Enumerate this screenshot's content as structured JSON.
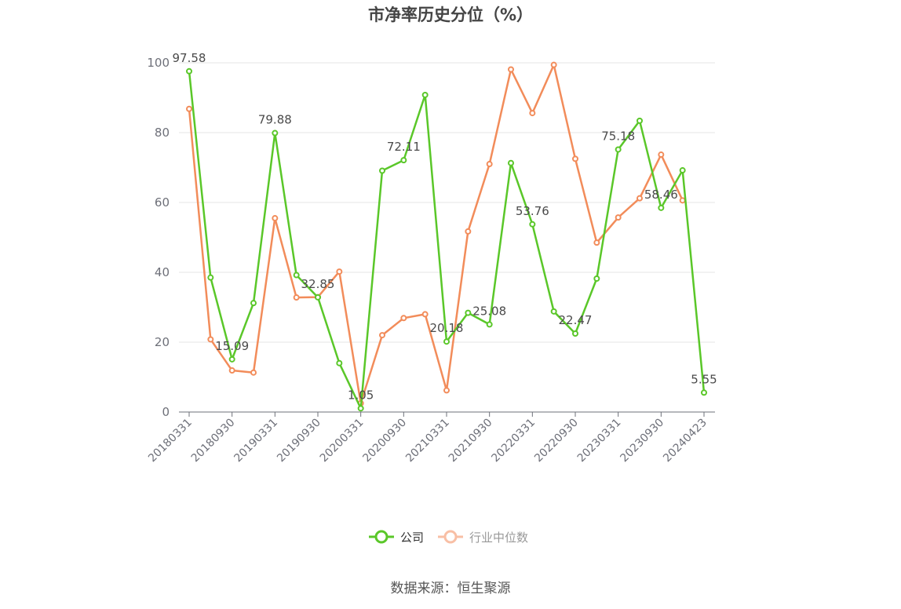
{
  "chart_data": {
    "type": "line",
    "title": "市净率历史分位（%）",
    "source": "数据来源：恒生聚源",
    "ylim": [
      0,
      100
    ],
    "yticks": [
      0,
      20,
      40,
      60,
      80,
      100
    ],
    "xtick_labels": [
      "20180331",
      "20180930",
      "20190331",
      "20190930",
      "20200331",
      "20200930",
      "20210331",
      "20210930",
      "20220331",
      "20220930",
      "20230331",
      "20230930",
      "20240423"
    ],
    "x": [
      "20180331",
      "20180630",
      "20180930",
      "20181231",
      "20190331",
      "20190630",
      "20190930",
      "20191231",
      "20200331",
      "20200630",
      "20200930",
      "20201231",
      "20210331",
      "20210630",
      "20210930",
      "20211231",
      "20220331",
      "20220630",
      "20220930",
      "20221231",
      "20230331",
      "20230630",
      "20230930",
      "20231231",
      "20240423"
    ],
    "series": [
      {
        "name": "公司",
        "color": "#5ac729",
        "values": [
          97.58,
          38.5,
          15.09,
          31.2,
          79.88,
          39.2,
          32.85,
          14.0,
          1.05,
          69.1,
          72.11,
          90.8,
          20.18,
          28.4,
          25.08,
          71.3,
          53.76,
          28.8,
          22.47,
          38.2,
          75.18,
          83.4,
          58.46,
          69.2,
          5.55
        ],
        "labels": {
          "0": "97.58",
          "2": "15.09",
          "4": "79.88",
          "6": "32.85",
          "8": "1.05",
          "10": "72.11",
          "12": "20.18",
          "14": "25.08",
          "16": "53.76",
          "18": "22.47",
          "20": "75.18",
          "22": "58.46",
          "24": "5.55"
        }
      },
      {
        "name": "行业中位数",
        "color": "#f28c5a",
        "values": [
          86.8,
          20.8,
          11.9,
          11.3,
          55.5,
          32.8,
          32.9,
          40.2,
          2.5,
          22.0,
          26.9,
          28.0,
          6.2,
          51.7,
          71.0,
          98.1,
          85.6,
          99.4,
          72.5,
          48.5,
          55.7,
          61.2,
          73.7,
          60.6,
          null
        ]
      }
    ],
    "legend": {
      "position": "bottom-center",
      "active": "公司"
    }
  }
}
